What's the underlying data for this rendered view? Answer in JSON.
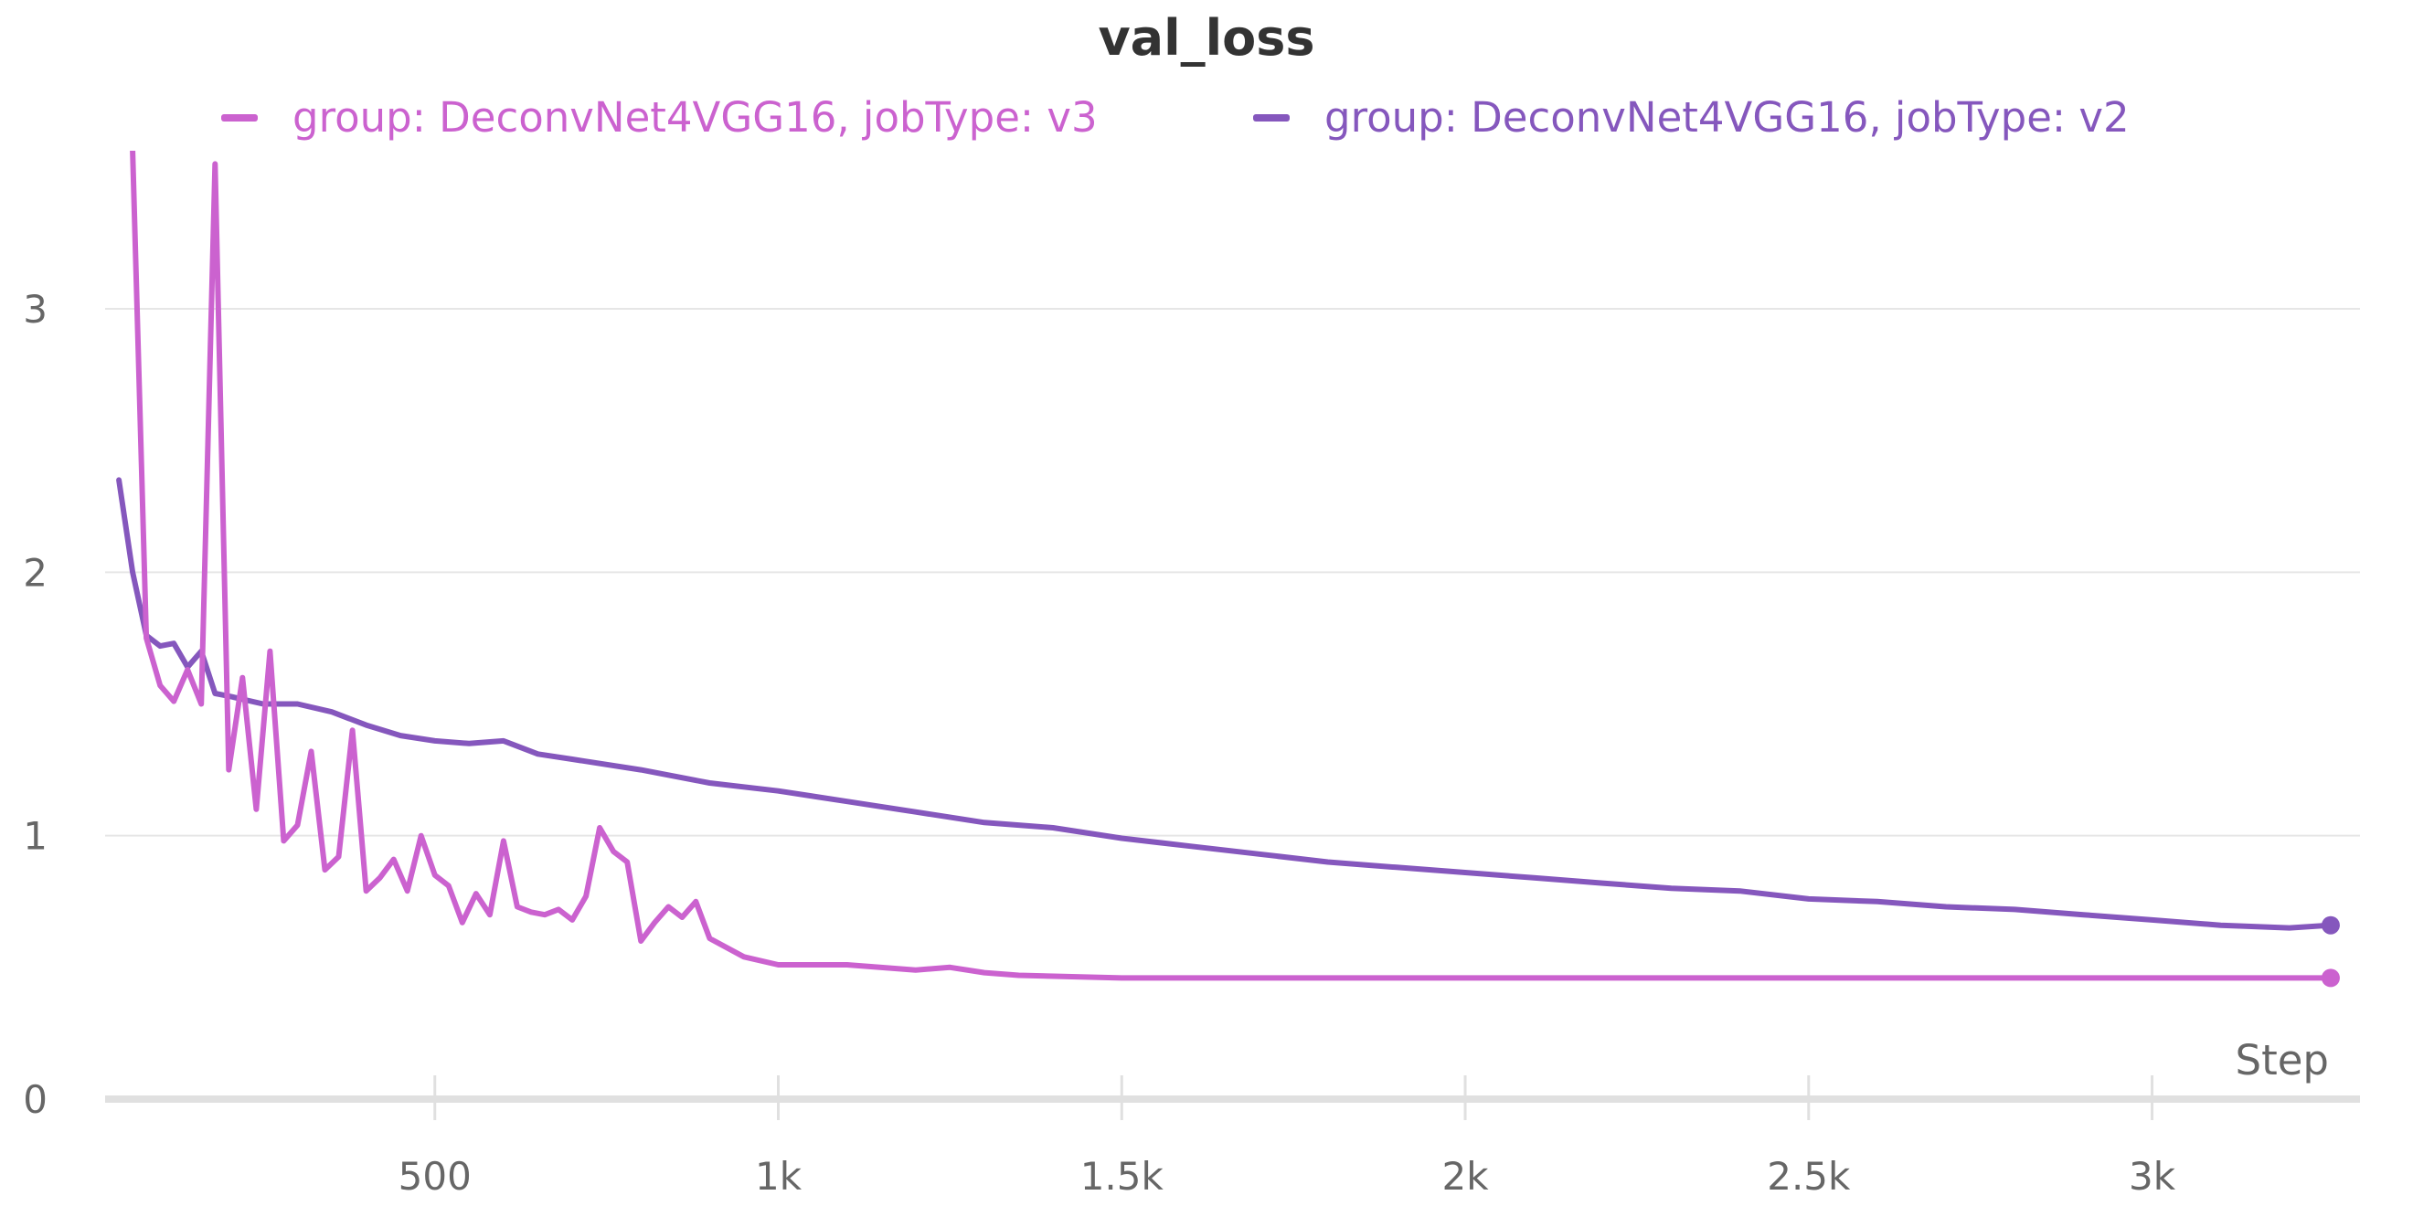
{
  "chart_data": {
    "type": "line",
    "title": "val_loss",
    "xlabel": "Step",
    "ylabel": "",
    "xlim": [
      60,
      3260
    ],
    "ylim": [
      0,
      3.6
    ],
    "x_ticks": [
      500,
      1000,
      1500,
      2000,
      2500,
      3000
    ],
    "x_tick_labels": [
      "500",
      "1k",
      "1.5k",
      "2k",
      "2.5k",
      "3k"
    ],
    "y_ticks": [
      0,
      1,
      2,
      3
    ],
    "y_tick_labels": [
      "0",
      "1",
      "2",
      "3"
    ],
    "grid": true,
    "legend_position": "top",
    "series": [
      {
        "name": "group: DeconvNet4VGG16, jobType: v3",
        "color": "#cb62cf",
        "x": [
          60,
          80,
          100,
          120,
          140,
          160,
          180,
          200,
          220,
          240,
          260,
          280,
          300,
          320,
          340,
          360,
          380,
          400,
          420,
          440,
          460,
          480,
          500,
          520,
          540,
          560,
          580,
          600,
          620,
          640,
          660,
          680,
          700,
          720,
          740,
          760,
          780,
          800,
          820,
          840,
          860,
          880,
          900,
          950,
          1000,
          1100,
          1200,
          1250,
          1300,
          1350,
          1500,
          1700,
          1900,
          2100,
          2300,
          2500,
          2700,
          2900,
          3100,
          3260
        ],
        "y": [
          3.6,
          1.75,
          1.57,
          1.51,
          1.63,
          1.5,
          3.55,
          1.25,
          1.6,
          1.1,
          1.7,
          0.98,
          1.04,
          1.32,
          0.87,
          0.92,
          1.4,
          0.79,
          0.84,
          0.91,
          0.79,
          1.0,
          0.85,
          0.81,
          0.67,
          0.78,
          0.7,
          0.98,
          0.73,
          0.71,
          0.7,
          0.72,
          0.68,
          0.77,
          1.03,
          0.94,
          0.9,
          0.6,
          0.67,
          0.73,
          0.69,
          0.75,
          0.61,
          0.54,
          0.51,
          0.51,
          0.49,
          0.5,
          0.48,
          0.47,
          0.46,
          0.46,
          0.46,
          0.46,
          0.46,
          0.46,
          0.46,
          0.46,
          0.46,
          0.46
        ]
      },
      {
        "name": "group: DeconvNet4VGG16, jobType: v2",
        "color": "#8557bd",
        "x": [
          40,
          60,
          80,
          100,
          120,
          140,
          160,
          180,
          200,
          250,
          300,
          350,
          400,
          450,
          500,
          550,
          600,
          650,
          700,
          800,
          900,
          1000,
          1100,
          1200,
          1300,
          1400,
          1500,
          1600,
          1700,
          1800,
          1900,
          2000,
          2100,
          2200,
          2300,
          2400,
          2500,
          2600,
          2700,
          2800,
          2900,
          3000,
          3100,
          3200,
          3260
        ],
        "y": [
          2.35,
          2.0,
          1.76,
          1.72,
          1.73,
          1.64,
          1.7,
          1.54,
          1.53,
          1.5,
          1.5,
          1.47,
          1.42,
          1.38,
          1.36,
          1.35,
          1.36,
          1.31,
          1.29,
          1.25,
          1.2,
          1.17,
          1.13,
          1.09,
          1.05,
          1.03,
          0.99,
          0.96,
          0.93,
          0.9,
          0.88,
          0.86,
          0.84,
          0.82,
          0.8,
          0.79,
          0.76,
          0.75,
          0.73,
          0.72,
          0.7,
          0.68,
          0.66,
          0.65,
          0.66
        ]
      }
    ]
  }
}
